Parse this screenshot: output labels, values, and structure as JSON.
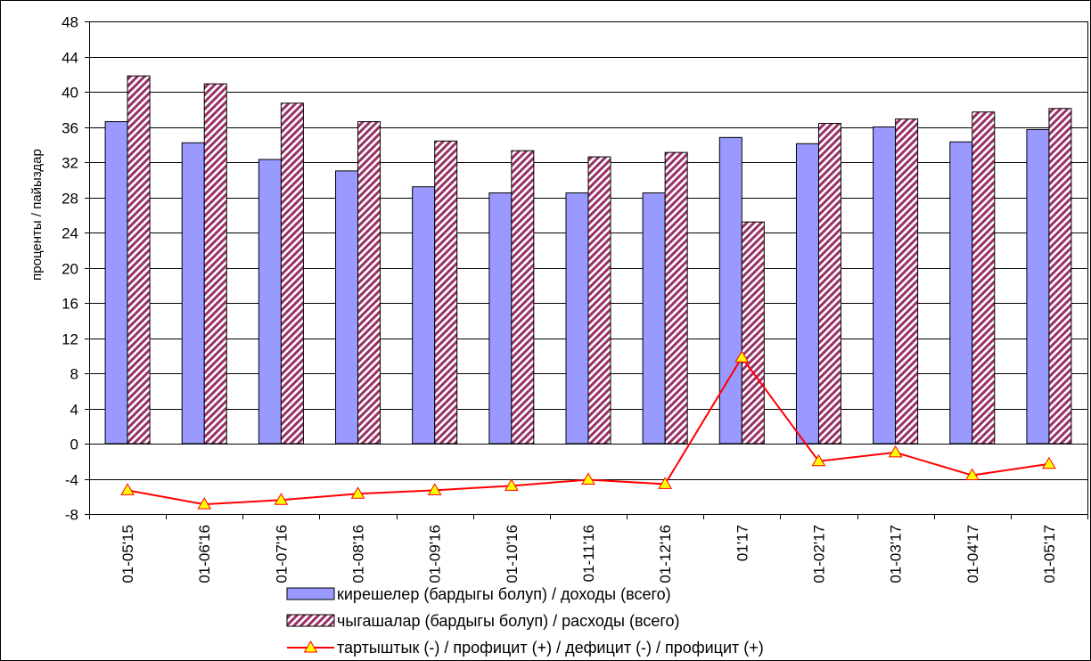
{
  "chart_data": {
    "type": "bar",
    "categories": [
      "01-05'15",
      "01-06'16",
      "01-07'16",
      "01-08'16",
      "01-09'16",
      "01-10'16",
      "01-11'16",
      "01-12'16",
      "01'17",
      "01-02'17",
      "01-03'17",
      "01-04'17",
      "01-05'17"
    ],
    "series": [
      {
        "name": "кирешелер (бардыгы болуп) / доходы (всего)",
        "type": "bar",
        "values": [
          36.6,
          34.2,
          32.3,
          31.0,
          29.2,
          28.5,
          28.5,
          28.5,
          34.8,
          34.1,
          36.0,
          34.3,
          35.7
        ],
        "color": "#9999FF"
      },
      {
        "name": "чыгашалар (бардыгы болуп) / расходы (всего)",
        "type": "bar",
        "pattern": "diagonal-hatch",
        "values": [
          41.8,
          40.9,
          38.7,
          36.6,
          34.4,
          33.3,
          32.6,
          33.1,
          25.2,
          36.4,
          36.9,
          37.7,
          38.1
        ],
        "color": "#993366"
      },
      {
        "name": "тартыштык (-) / профицит (+) / дефицит (-) / профицит (+)",
        "type": "line",
        "marker": "triangle",
        "values": [
          -5.3,
          -6.9,
          -6.4,
          -5.7,
          -5.3,
          -4.8,
          -4.1,
          -4.6,
          9.8,
          -2.0,
          -1.0,
          -3.6,
          -2.3
        ],
        "color": "#FF0000",
        "marker_color": "#FFFF00"
      }
    ],
    "title": "",
    "xlabel": "",
    "ylabel": "проценты / пайыздар",
    "ylim": [
      -8,
      48
    ],
    "yticks": [
      48,
      44,
      40,
      36,
      32,
      28,
      24,
      20,
      16,
      12,
      8,
      4,
      0,
      -4,
      -8
    ],
    "grid": true,
    "legend": "bottom"
  }
}
